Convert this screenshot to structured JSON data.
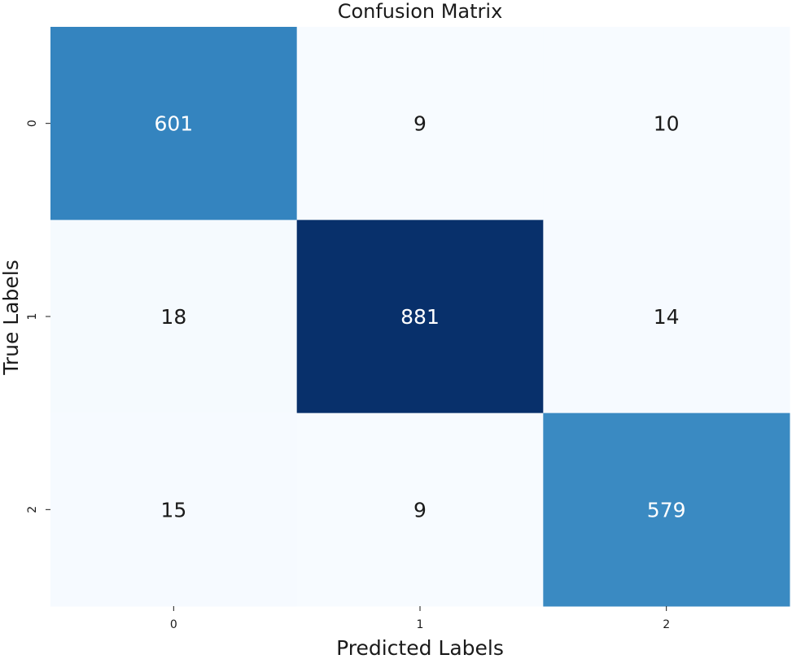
{
  "chart_data": {
    "type": "heatmap",
    "title": "Confusion Matrix",
    "xlabel": "Predicted Labels",
    "ylabel": "True Labels",
    "x_categories": [
      "0",
      "1",
      "2"
    ],
    "y_categories": [
      "0",
      "1",
      "2"
    ],
    "values": [
      [
        601,
        9,
        10
      ],
      [
        18,
        881,
        14
      ],
      [
        15,
        9,
        579
      ]
    ],
    "colormap": "Blues",
    "color_range": [
      9,
      881
    ],
    "colorbar": false,
    "grid": false,
    "colors": {
      "low": "#f7fbff",
      "high": "#08306b",
      "text_dark": "#1a1a1a",
      "text_light": "#ffffff"
    }
  }
}
